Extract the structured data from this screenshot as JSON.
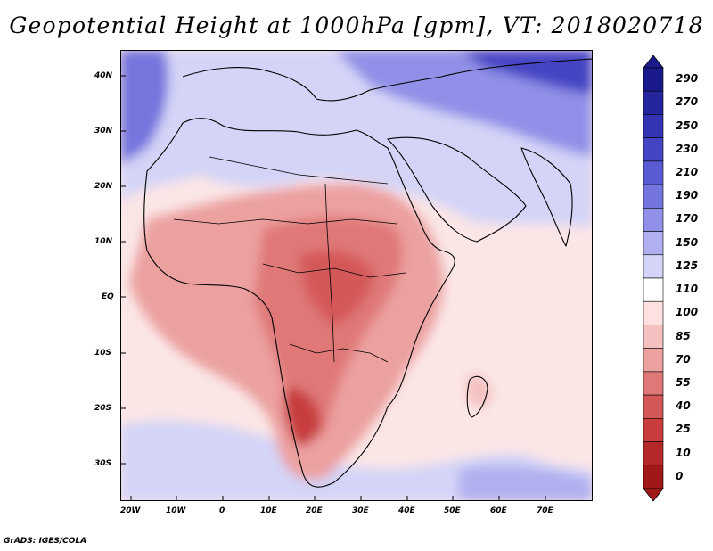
{
  "title": "Geopotential Height at 1000hPa [gpm], VT: 2018020718",
  "map": {
    "variable": "Geopotential Height",
    "level": "1000hPa",
    "units": "gpm",
    "valid_time": "2018020718",
    "lon_ticks": [
      "20W",
      "10W",
      "0",
      "10E",
      "20E",
      "30E",
      "40E",
      "50E",
      "60E",
      "70E"
    ],
    "lat_ticks": [
      "40N",
      "30N",
      "20N",
      "10N",
      "EQ",
      "10S",
      "20S",
      "30S"
    ]
  },
  "colorbar": {
    "levels": [
      "290",
      "270",
      "250",
      "230",
      "210",
      "190",
      "170",
      "150",
      "125",
      "110",
      "100",
      "85",
      "70",
      "55",
      "40",
      "25",
      "10",
      "0"
    ],
    "colors": [
      "#1a1a8c",
      "#25259e",
      "#3333b3",
      "#4444c4",
      "#5a5ad2",
      "#7474de",
      "#9090e8",
      "#b0b0f0",
      "#d4d4f8",
      "#ffffff",
      "#fde0e0",
      "#f5c0c0",
      "#eca0a0",
      "#e07878",
      "#d45858",
      "#c83c3c",
      "#b42828",
      "#a01818"
    ]
  },
  "colors": {
    "low": "#a01818",
    "neutral": "#ffffff",
    "high": "#1a1a8c"
  },
  "credit": "GrADS: IGES/COLA"
}
